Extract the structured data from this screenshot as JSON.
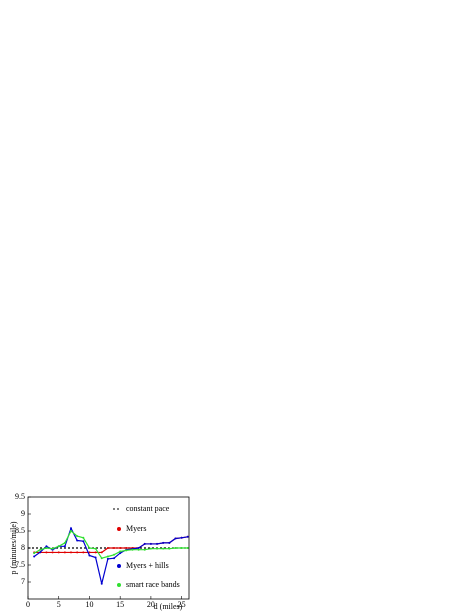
{
  "chart_data": {
    "type": "line",
    "xlabel": "d (miles)",
    "ylabel": "p (minutes/mile)",
    "xlim": [
      0,
      26.2
    ],
    "xticks": [
      0,
      5,
      10,
      15,
      20,
      25
    ],
    "ylim": [
      6.5,
      9.5
    ],
    "yticks": [
      7,
      7.5,
      8,
      8.5,
      9,
      9.5
    ],
    "series": [
      {
        "name": "constant pace",
        "color": "#000000",
        "dashed": true,
        "x": [
          0,
          26.2
        ],
        "values": [
          8,
          8
        ]
      },
      {
        "name": "Myers",
        "color": "#e00000",
        "x": [
          1,
          2,
          3,
          4,
          5,
          6,
          7,
          8,
          9,
          10,
          11,
          12,
          13,
          14,
          15,
          16,
          17,
          18,
          19,
          20,
          21,
          22,
          23,
          24,
          25,
          26
        ],
        "values": [
          7.87,
          7.87,
          7.87,
          7.87,
          7.87,
          7.87,
          7.87,
          7.87,
          7.87,
          7.87,
          7.87,
          7.87,
          8,
          8,
          8,
          8,
          8,
          8,
          8.12,
          8.12,
          8.12,
          8.15,
          8.15,
          8.28,
          8.3,
          8.33
        ]
      },
      {
        "name": "Myers + hills",
        "color": "#0000d0",
        "x": [
          1,
          2,
          3,
          4,
          5,
          6,
          7,
          8,
          9,
          10,
          11,
          12,
          13,
          14,
          15,
          16,
          17,
          18,
          19,
          20,
          21,
          22,
          23,
          24,
          25,
          26
        ],
        "values": [
          7.75,
          7.88,
          8.05,
          7.95,
          8.05,
          8.05,
          8.58,
          8.22,
          8.2,
          7.78,
          7.72,
          6.95,
          7.68,
          7.7,
          7.85,
          7.95,
          7.97,
          8,
          8.12,
          8.12,
          8.12,
          8.15,
          8.15,
          8.28,
          8.3,
          8.33
        ]
      },
      {
        "name": "smart race bands",
        "color": "#30e030",
        "x": [
          1,
          2,
          3,
          4,
          5,
          6,
          7,
          8,
          9,
          10,
          11,
          12,
          13,
          14,
          15,
          16,
          17,
          18,
          19,
          20,
          21,
          22,
          23,
          24,
          25,
          26
        ],
        "values": [
          7.85,
          7.95,
          8,
          7.98,
          8.05,
          8.15,
          8.5,
          8.35,
          8.3,
          8,
          7.98,
          7.7,
          7.75,
          7.8,
          7.9,
          7.93,
          7.95,
          7.95,
          7.95,
          7.98,
          7.98,
          7.98,
          7.98,
          8,
          8,
          8
        ]
      }
    ]
  }
}
